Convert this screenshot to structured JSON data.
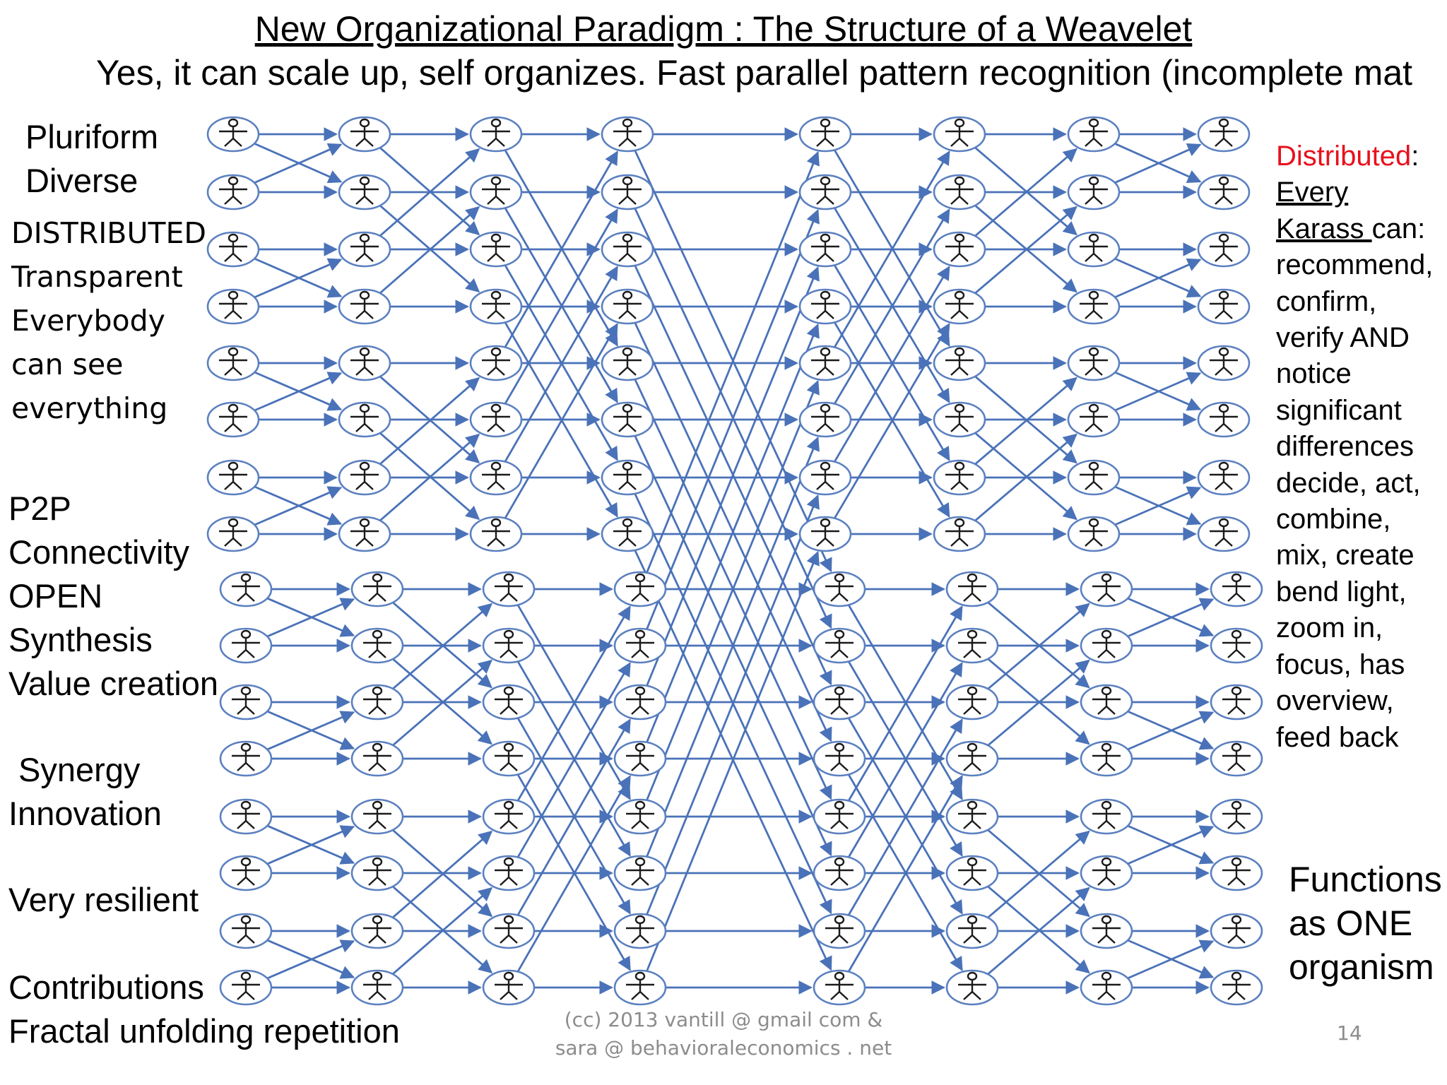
{
  "title": "New Organizational Paradigm : The Structure of a Weavelet",
  "subtitle": "Yes, it can scale  up, self organizes. Fast parallel pattern recognition (incomplete mat",
  "left_labels": [
    "Pluriform",
    "Diverse",
    "DISTRIBUTED",
    "Transparent",
    "Everybody",
    "can see",
    "everything",
    "P2P",
    "Connectivity",
    "OPEN",
    " Synthesis",
    "Value creation",
    " Synergy",
    "Innovation",
    "Very resilient",
    "Contributions",
    "Fractal unfolding repetition"
  ],
  "right_panel": {
    "distributed_word": "Distributed",
    "colon": ":",
    "every": "Every ",
    "karass": "Karass ",
    "can": "can:",
    "lines": [
      "recommend,",
      "confirm,",
      "verify AND",
      "notice",
      "significant",
      "differences",
      "decide, act,",
      "combine,",
      "mix, create",
      "bend light,",
      "zoom in,",
      "focus, has",
      "overview,",
      "feed back"
    ]
  },
  "functions": [
    "Functions",
    "as ONE",
    "organism"
  ],
  "footer": {
    "line1": "(cc) 2013 vantill @ gmail com &",
    "line2": "sara @ behavioraleconomics . net"
  },
  "page_number": "14",
  "colors": {
    "edge": "#4a72b8",
    "node_border": "#5b80c0",
    "highlight": "#e8101c",
    "footer": "#8c8c8c"
  },
  "diagram": {
    "node_icon": "stick-figure-icon",
    "columns": 8,
    "rows": 16
  }
}
